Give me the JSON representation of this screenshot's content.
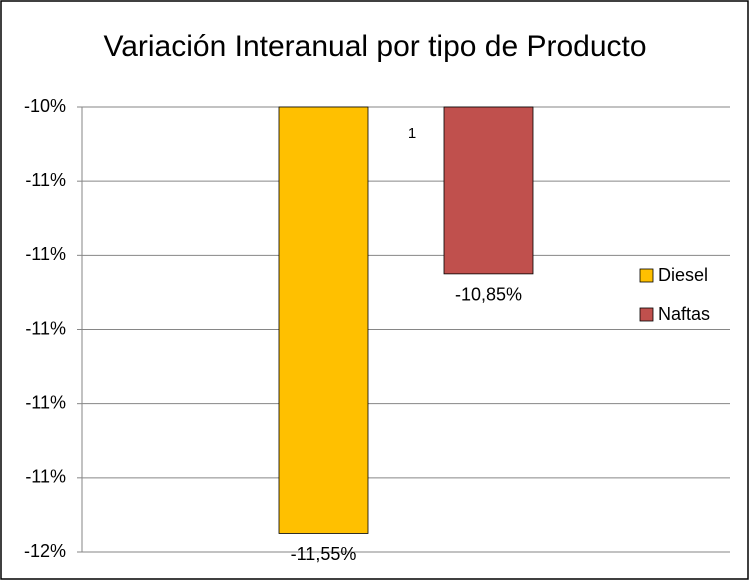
{
  "chart_data": {
    "type": "bar",
    "title": "Variación Interanual por tipo de Producto",
    "categories": [
      "1"
    ],
    "series": [
      {
        "name": "Diesel",
        "color": "#FFC000",
        "values": [
          -11.55
        ],
        "value_labels": [
          "-11,55%"
        ]
      },
      {
        "name": "Naftas",
        "color": "#C0504D",
        "values": [
          -10.85
        ],
        "value_labels": [
          "-10,85%"
        ]
      }
    ],
    "ylim": [
      -11.6,
      -10.4
    ],
    "yticks": [
      {
        "value": -10.4,
        "label": "-10%"
      },
      {
        "value": -10.6,
        "label": "-11%"
      },
      {
        "value": -10.8,
        "label": "-11%"
      },
      {
        "value": -11.0,
        "label": "-11%"
      },
      {
        "value": -11.2,
        "label": "-11%"
      },
      {
        "value": -11.4,
        "label": "-11%"
      },
      {
        "value": -11.6,
        "label": "-12%"
      }
    ],
    "grid": true,
    "legend": "right"
  }
}
